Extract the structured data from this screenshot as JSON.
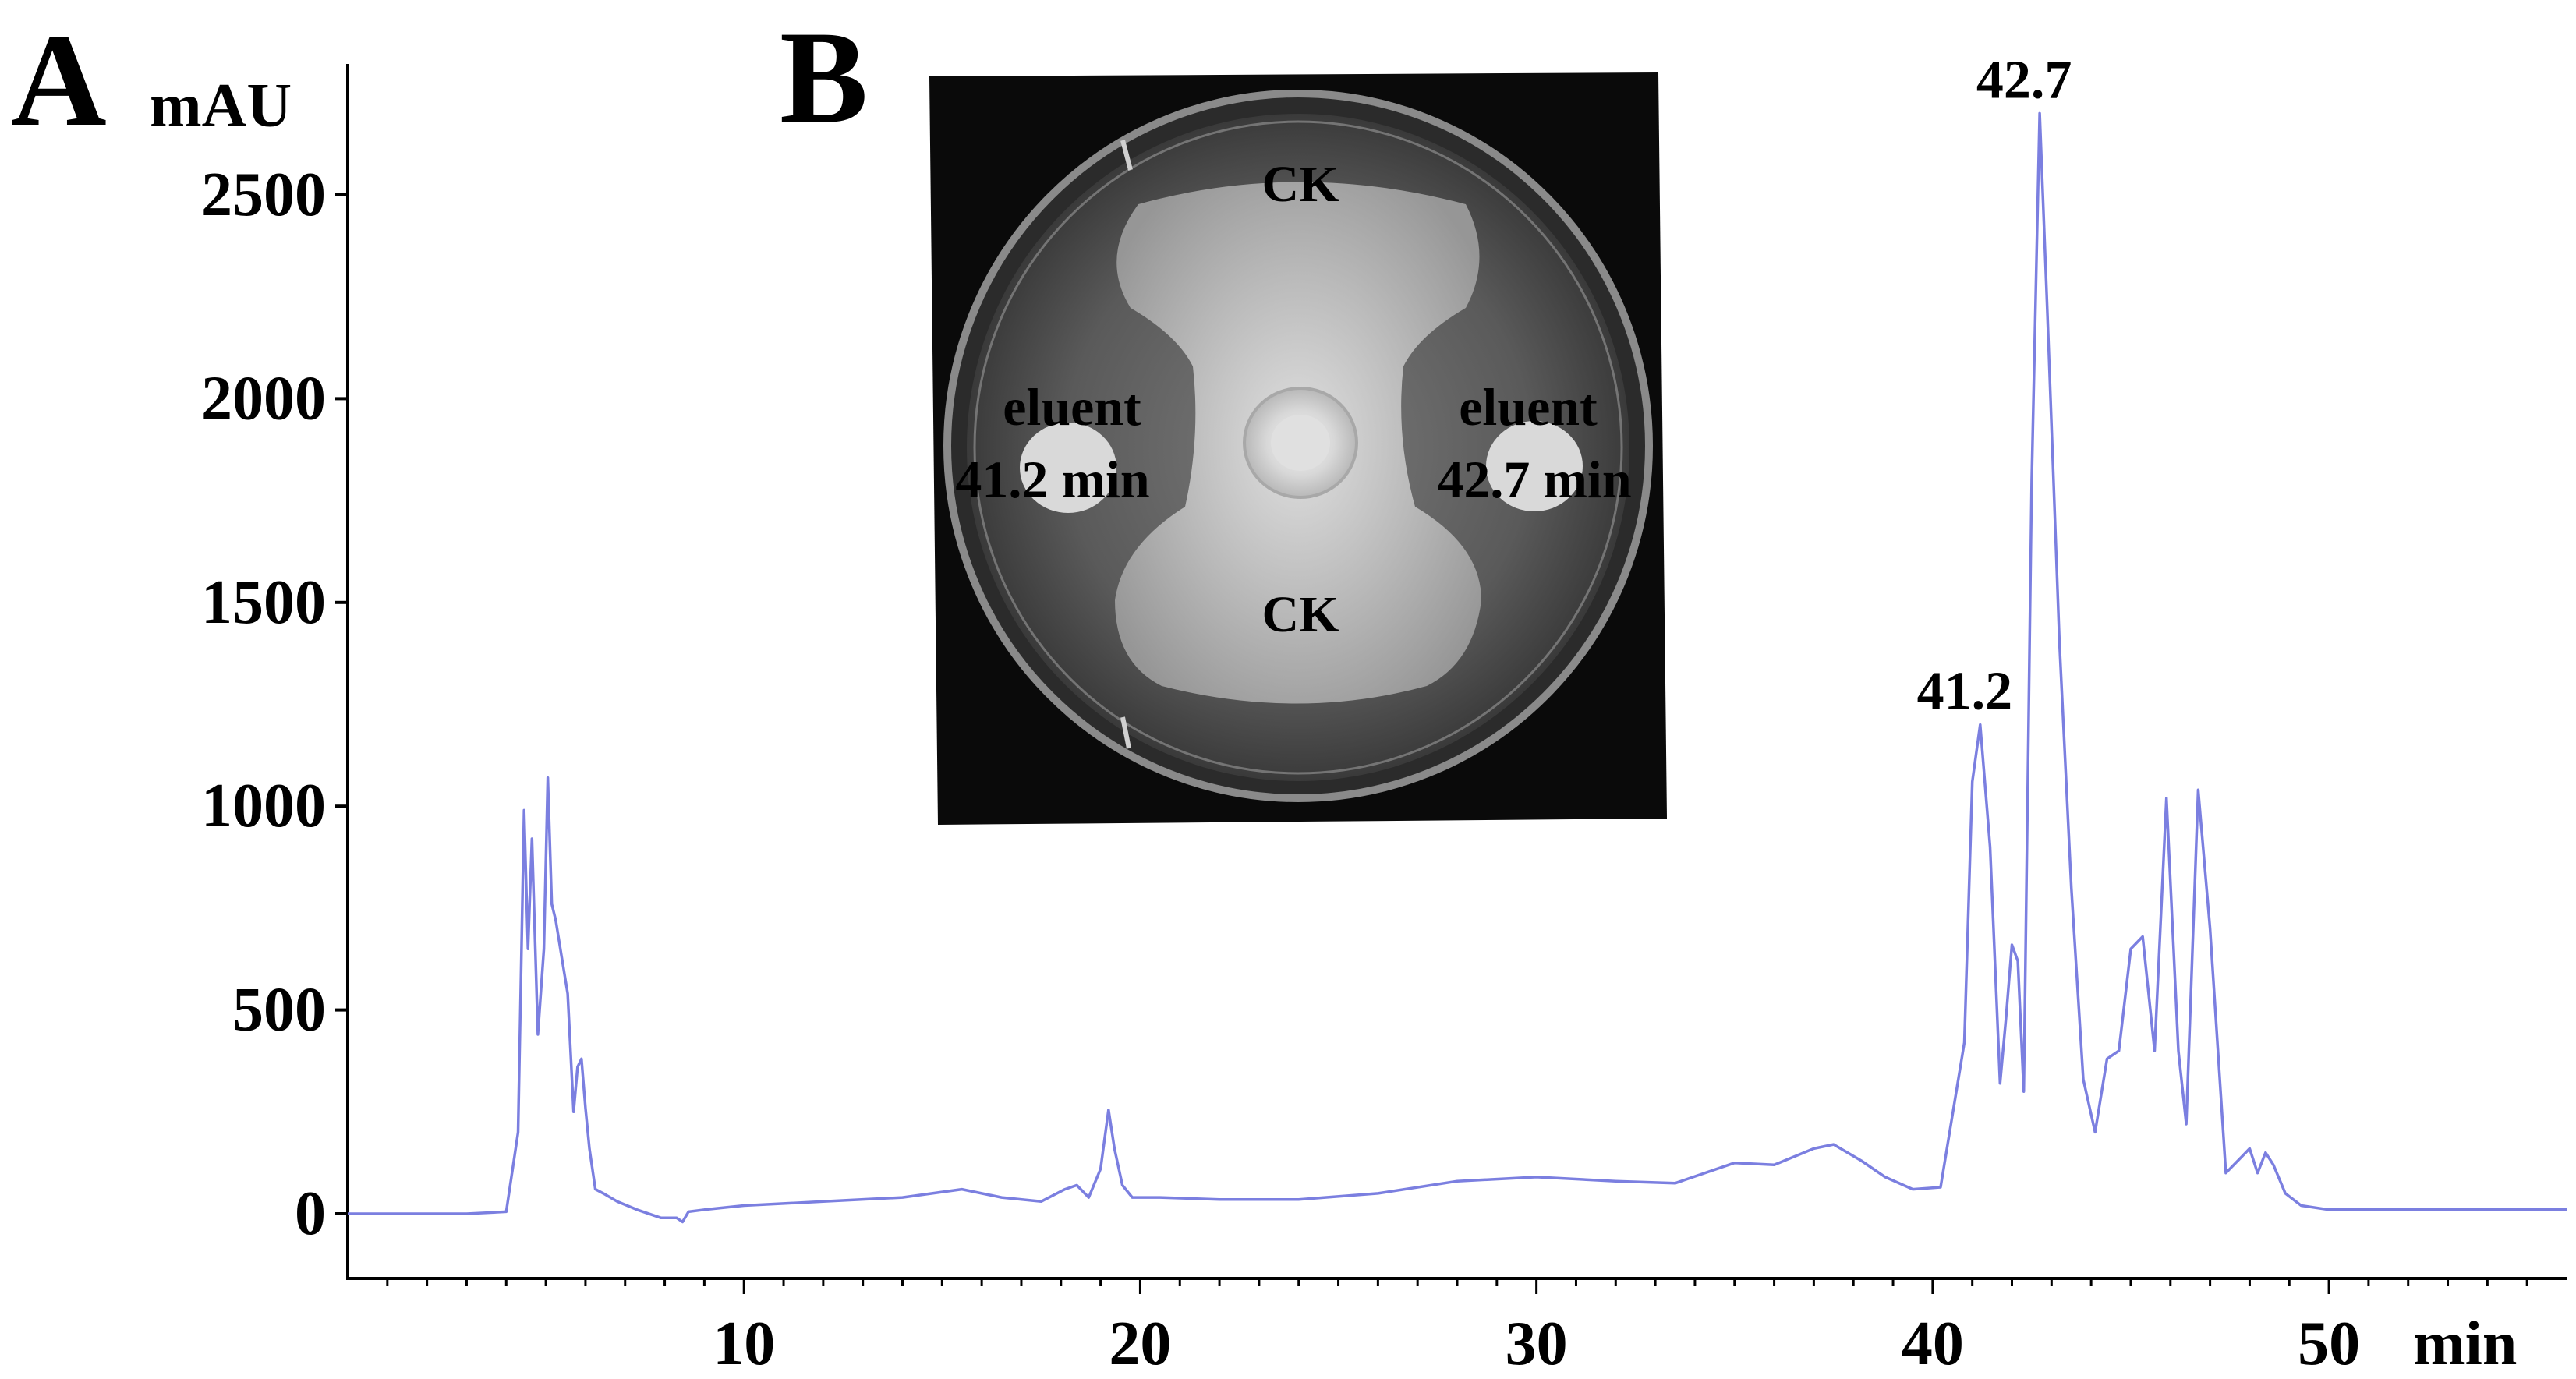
{
  "panels": {
    "a_label": "A",
    "b_label": "B"
  },
  "chart_data": {
    "type": "line",
    "xlabel": "min",
    "ylabel": "mAU",
    "xlim": [
      0,
      56
    ],
    "ylim": [
      -150,
      2750
    ],
    "x_ticks": [
      10,
      20,
      30,
      40,
      50
    ],
    "y_ticks": [
      0,
      500,
      1000,
      1500,
      2000,
      2500
    ],
    "grid": false,
    "line_color": "#7b7fe0",
    "series": [
      {
        "x": [
          0,
          3,
          4,
          4.3,
          4.45,
          4.55,
          4.65,
          4.8,
          4.95,
          5.05,
          5.15,
          5.25,
          5.4,
          5.55,
          5.7,
          5.8,
          5.9,
          6.0,
          6.1,
          6.25,
          6.45,
          6.8,
          7.3,
          7.9,
          8.3,
          8.45,
          8.6,
          9.0,
          10,
          12,
          14,
          15.5,
          16.5,
          17.5,
          18.1,
          18.4,
          18.7,
          19.0,
          19.2,
          19.35,
          19.55,
          19.8,
          20.5,
          22,
          24,
          26,
          28,
          30,
          32,
          33.5,
          35,
          36,
          37,
          37.5,
          38.2,
          38.8,
          39.5,
          40.2,
          40.8,
          41.0,
          41.2,
          41.45,
          41.7,
          41.85,
          42.0,
          42.15,
          42.3,
          42.5,
          42.7,
          42.9,
          43.2,
          43.5,
          43.8,
          44.1,
          44.4,
          44.7,
          45.0,
          45.3,
          45.6,
          45.9,
          46.2,
          46.4,
          46.7,
          47.0,
          47.4,
          47.8,
          48.0,
          48.2,
          48.4,
          48.6,
          48.9,
          49.3,
          50,
          52,
          54,
          56
        ],
        "y": [
          0,
          0,
          5,
          200,
          990,
          650,
          920,
          440,
          650,
          1070,
          760,
          720,
          630,
          540,
          250,
          360,
          380,
          260,
          160,
          60,
          50,
          30,
          10,
          -10,
          -10,
          -20,
          5,
          10,
          20,
          30,
          40,
          60,
          40,
          30,
          60,
          70,
          40,
          110,
          255,
          160,
          70,
          40,
          40,
          35,
          35,
          50,
          80,
          90,
          80,
          75,
          125,
          120,
          160,
          170,
          130,
          90,
          60,
          65,
          420,
          1060,
          1200,
          900,
          320,
          480,
          660,
          620,
          300,
          1800,
          2700,
          2200,
          1400,
          800,
          330,
          200,
          380,
          400,
          650,
          680,
          400,
          1020,
          400,
          220,
          1040,
          700,
          100,
          140,
          160,
          100,
          150,
          120,
          50,
          20,
          10,
          10,
          10,
          10
        ]
      }
    ],
    "annotations": [
      "41.2",
      "42.7"
    ],
    "annotation_x": [
      41.2,
      42.7
    ],
    "annotation_y": [
      1200,
      2700
    ]
  },
  "inset": {
    "label_top": "CK",
    "label_bottom": "CK",
    "label_left_line1": "eluent",
    "label_left_line2": "41.2 min",
    "label_right_line1": "eluent",
    "label_right_line2": "42.7 min"
  }
}
